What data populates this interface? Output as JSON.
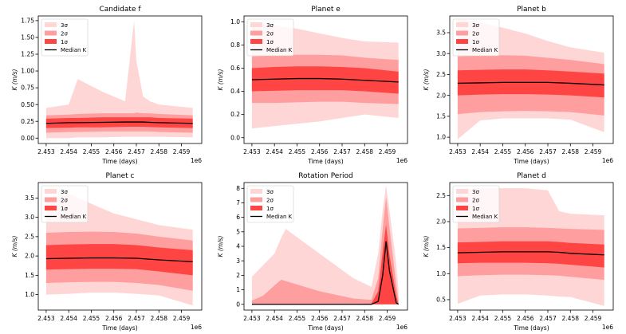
{
  "colors": {
    "band_3sigma": "#ffd6d6",
    "band_2sigma": "#ff9e9e",
    "band_1sigma": "#ff4444",
    "median_line": "#000000"
  },
  "legend_labels": [
    "3σ",
    "2σ",
    "1σ",
    "Median K"
  ],
  "xtick_labels": [
    "2.453",
    "2.454",
    "2.455",
    "2.456",
    "2.457",
    "2.458",
    "2.459"
  ],
  "x_offset_label": "1e6",
  "chart_data": [
    {
      "type": "area",
      "title": "Candidate f",
      "xlabel": "Time (days)",
      "ylabel": "K (m/s)",
      "legend": "top-left",
      "xlim": [
        2452650,
        2459900
      ],
      "ylim": [
        -0.08,
        1.82
      ],
      "yticks": [
        0.0,
        0.25,
        0.5,
        0.75,
        1.0,
        1.25,
        1.5,
        1.75
      ],
      "ytick_labels": [
        "0.00",
        "0.25",
        "0.50",
        "0.75",
        "1.00",
        "1.25",
        "1.50",
        "1.75"
      ],
      "x": [
        2453000,
        2454000,
        2454400,
        2455500,
        2456500,
        2456900,
        2457000,
        2457300,
        2457600,
        2458000,
        2459500
      ],
      "median": [
        0.22,
        0.23,
        0.23,
        0.235,
        0.24,
        0.24,
        0.24,
        0.24,
        0.235,
        0.23,
        0.22
      ],
      "sigma1": [
        [
          0.15,
          0.29
        ],
        [
          0.155,
          0.3
        ],
        [
          0.16,
          0.3
        ],
        [
          0.16,
          0.31
        ],
        [
          0.17,
          0.31
        ],
        [
          0.17,
          0.31
        ],
        [
          0.17,
          0.31
        ],
        [
          0.17,
          0.31
        ],
        [
          0.165,
          0.31
        ],
        [
          0.16,
          0.3
        ],
        [
          0.15,
          0.29
        ]
      ],
      "sigma2": [
        [
          0.08,
          0.34
        ],
        [
          0.09,
          0.35
        ],
        [
          0.09,
          0.36
        ],
        [
          0.1,
          0.37
        ],
        [
          0.1,
          0.37
        ],
        [
          0.1,
          0.37
        ],
        [
          0.1,
          0.38
        ],
        [
          0.1,
          0.37
        ],
        [
          0.1,
          0.37
        ],
        [
          0.09,
          0.36
        ],
        [
          0.08,
          0.34
        ]
      ],
      "sigma3": [
        [
          0.0,
          0.45
        ],
        [
          0.0,
          0.5
        ],
        [
          0.01,
          0.88
        ],
        [
          0.01,
          0.69
        ],
        [
          0.02,
          0.55
        ],
        [
          0.02,
          1.75
        ],
        [
          0.02,
          1.15
        ],
        [
          0.02,
          0.62
        ],
        [
          0.02,
          0.55
        ],
        [
          0.02,
          0.5
        ],
        [
          0.01,
          0.45
        ]
      ]
    },
    {
      "type": "area",
      "title": "Planet e",
      "xlabel": "Time (days)",
      "ylabel": "K (m/s)",
      "legend": "top-left",
      "xlim": [
        2452650,
        2459900
      ],
      "ylim": [
        -0.05,
        1.05
      ],
      "yticks": [
        0.0,
        0.2,
        0.4,
        0.6,
        0.8,
        1.0
      ],
      "ytick_labels": [
        "0.0",
        "0.2",
        "0.4",
        "0.6",
        "0.8",
        "1.0"
      ],
      "x": [
        2453000,
        2454000,
        2455000,
        2456000,
        2457000,
        2458000,
        2459500
      ],
      "median": [
        0.5,
        0.505,
        0.51,
        0.51,
        0.505,
        0.495,
        0.48
      ],
      "sigma1": [
        [
          0.4,
          0.6
        ],
        [
          0.405,
          0.61
        ],
        [
          0.41,
          0.615
        ],
        [
          0.41,
          0.615
        ],
        [
          0.41,
          0.61
        ],
        [
          0.4,
          0.6
        ],
        [
          0.38,
          0.57
        ]
      ],
      "sigma2": [
        [
          0.3,
          0.7
        ],
        [
          0.3,
          0.71
        ],
        [
          0.305,
          0.715
        ],
        [
          0.31,
          0.715
        ],
        [
          0.31,
          0.71
        ],
        [
          0.3,
          0.69
        ],
        [
          0.29,
          0.67
        ]
      ],
      "sigma3": [
        [
          0.08,
          0.99
        ],
        [
          0.1,
          0.97
        ],
        [
          0.12,
          0.94
        ],
        [
          0.14,
          0.9
        ],
        [
          0.17,
          0.86
        ],
        [
          0.2,
          0.83
        ],
        [
          0.17,
          0.82
        ]
      ]
    },
    {
      "type": "area",
      "title": "Planet b",
      "xlabel": "Time (days)",
      "ylabel": "K (m/s)",
      "legend": "top-left",
      "xlim": [
        2452650,
        2459900
      ],
      "ylim": [
        0.85,
        3.9
      ],
      "yticks": [
        1.0,
        1.5,
        2.0,
        2.5,
        3.0,
        3.5
      ],
      "ytick_labels": [
        "1.0",
        "1.5",
        "2.0",
        "2.5",
        "3.0",
        "3.5"
      ],
      "x": [
        2453000,
        2454000,
        2455000,
        2456000,
        2457000,
        2458000,
        2459500
      ],
      "median": [
        2.29,
        2.3,
        2.31,
        2.31,
        2.31,
        2.29,
        2.25
      ],
      "sigma1": [
        [
          2.0,
          2.6
        ],
        [
          2.02,
          2.61
        ],
        [
          2.03,
          2.62
        ],
        [
          2.03,
          2.62
        ],
        [
          2.02,
          2.6
        ],
        [
          2.0,
          2.57
        ],
        [
          1.95,
          2.52
        ]
      ],
      "sigma2": [
        [
          1.55,
          2.93
        ],
        [
          1.6,
          2.95
        ],
        [
          1.62,
          2.96
        ],
        [
          1.63,
          2.95
        ],
        [
          1.62,
          2.9
        ],
        [
          1.6,
          2.85
        ],
        [
          1.52,
          2.75
        ]
      ],
      "sigma3": [
        [
          0.95,
          3.82
        ],
        [
          1.4,
          3.75
        ],
        [
          1.45,
          3.62
        ],
        [
          1.45,
          3.48
        ],
        [
          1.45,
          3.3
        ],
        [
          1.42,
          3.15
        ],
        [
          1.12,
          3.02
        ]
      ]
    },
    {
      "type": "area",
      "title": "Planet c",
      "xlabel": "Time (days)",
      "ylabel": "K (m/s)",
      "legend": "top-left",
      "xlim": [
        2452650,
        2459900
      ],
      "ylim": [
        0.6,
        3.9
      ],
      "yticks": [
        1.0,
        1.5,
        2.0,
        2.5,
        3.0,
        3.5
      ],
      "ytick_labels": [
        "1.0",
        "1.5",
        "2.0",
        "2.5",
        "3.0",
        "3.5"
      ],
      "x": [
        2453000,
        2454000,
        2455000,
        2456000,
        2457000,
        2458000,
        2459500
      ],
      "median": [
        1.93,
        1.94,
        1.95,
        1.95,
        1.94,
        1.9,
        1.85
      ],
      "sigma1": [
        [
          1.65,
          2.28
        ],
        [
          1.66,
          2.3
        ],
        [
          1.67,
          2.31
        ],
        [
          1.67,
          2.31
        ],
        [
          1.66,
          2.28
        ],
        [
          1.6,
          2.22
        ],
        [
          1.5,
          2.15
        ]
      ],
      "sigma2": [
        [
          1.3,
          2.6
        ],
        [
          1.32,
          2.62
        ],
        [
          1.33,
          2.63
        ],
        [
          1.33,
          2.62
        ],
        [
          1.3,
          2.58
        ],
        [
          1.25,
          2.5
        ],
        [
          1.1,
          2.4
        ]
      ],
      "sigma3": [
        [
          1.0,
          3.5
        ],
        [
          1.02,
          3.6
        ],
        [
          1.05,
          3.35
        ],
        [
          1.05,
          3.1
        ],
        [
          1.02,
          2.95
        ],
        [
          0.98,
          2.8
        ],
        [
          0.72,
          2.68
        ]
      ]
    },
    {
      "type": "area",
      "title": "Rotation Period",
      "xlabel": "Time (days)",
      "ylabel": "K (m/s)",
      "legend": "top-left",
      "xlim": [
        2452650,
        2459900
      ],
      "ylim": [
        -0.4,
        8.4
      ],
      "yticks": [
        0,
        1,
        2,
        3,
        4,
        5,
        6,
        7,
        8
      ],
      "ytick_labels": [
        "0",
        "1",
        "2",
        "3",
        "4",
        "5",
        "6",
        "7",
        "8"
      ],
      "x": [
        2453000,
        2453500,
        2454000,
        2454300,
        2454500,
        2456000,
        2457500,
        2458300,
        2458600,
        2458800,
        2458950,
        2459100,
        2459400,
        2459500
      ],
      "median": [
        0.0,
        0.0,
        0.0,
        0.0,
        0.0,
        0.0,
        0.0,
        0.0,
        0.2,
        2.0,
        4.35,
        2.3,
        0.1,
        0.0
      ],
      "sigma1": [
        [
          0.0,
          0.0
        ],
        [
          0.0,
          0.0
        ],
        [
          0.0,
          0.0
        ],
        [
          0.0,
          0.0
        ],
        [
          0.0,
          0.0
        ],
        [
          0.0,
          0.0
        ],
        [
          0.0,
          0.0
        ],
        [
          0.0,
          0.05
        ],
        [
          0.0,
          0.9
        ],
        [
          0.0,
          3.6
        ],
        [
          0.0,
          5.5
        ],
        [
          0.0,
          3.4
        ],
        [
          0.0,
          0.6
        ],
        [
          0.0,
          0.0
        ]
      ],
      "sigma2": [
        [
          0.0,
          0.25
        ],
        [
          0.0,
          0.6
        ],
        [
          0.0,
          1.3
        ],
        [
          0.0,
          1.7
        ],
        [
          0.0,
          1.6
        ],
        [
          0.0,
          0.9
        ],
        [
          0.0,
          0.4
        ],
        [
          0.0,
          0.3
        ],
        [
          0.0,
          1.8
        ],
        [
          0.0,
          5.2
        ],
        [
          0.0,
          7.4
        ],
        [
          0.0,
          5.3
        ],
        [
          0.0,
          1.4
        ],
        [
          0.0,
          0.3
        ]
      ],
      "sigma3": [
        [
          0.0,
          1.9
        ],
        [
          0.0,
          2.7
        ],
        [
          0.0,
          3.5
        ],
        [
          0.0,
          4.6
        ],
        [
          0.0,
          5.2
        ],
        [
          0.0,
          3.5
        ],
        [
          0.0,
          1.8
        ],
        [
          0.0,
          1.2
        ],
        [
          0.0,
          3.5
        ],
        [
          0.0,
          6.5
        ],
        [
          0.0,
          8.2
        ],
        [
          0.0,
          6.5
        ],
        [
          0.0,
          2.8
        ],
        [
          0.0,
          1.0
        ]
      ]
    },
    {
      "type": "area",
      "title": "Planet d",
      "xlabel": "Time (days)",
      "ylabel": "K (m/s)",
      "legend": "top-left",
      "xlim": [
        2452650,
        2459900
      ],
      "ylim": [
        0.3,
        2.75
      ],
      "yticks": [
        0.5,
        1.0,
        1.5,
        2.0,
        2.5
      ],
      "ytick_labels": [
        "0.5",
        "1.0",
        "1.5",
        "2.0",
        "2.5"
      ],
      "x": [
        2453000,
        2454000,
        2455000,
        2456000,
        2457000,
        2457500,
        2458000,
        2459500
      ],
      "median": [
        1.4,
        1.41,
        1.42,
        1.42,
        1.42,
        1.41,
        1.39,
        1.36
      ],
      "sigma1": [
        [
          1.2,
          1.6
        ],
        [
          1.21,
          1.61
        ],
        [
          1.21,
          1.62
        ],
        [
          1.21,
          1.62
        ],
        [
          1.2,
          1.62
        ],
        [
          1.19,
          1.61
        ],
        [
          1.17,
          1.59
        ],
        [
          1.12,
          1.56
        ]
      ],
      "sigma2": [
        [
          0.95,
          1.87
        ],
        [
          0.97,
          1.88
        ],
        [
          0.98,
          1.89
        ],
        [
          0.98,
          1.89
        ],
        [
          0.97,
          1.88
        ],
        [
          0.96,
          1.87
        ],
        [
          0.94,
          1.86
        ],
        [
          0.88,
          1.84
        ]
      ],
      "sigma3": [
        [
          0.42,
          2.62
        ],
        [
          0.58,
          2.64
        ],
        [
          0.6,
          2.64
        ],
        [
          0.6,
          2.64
        ],
        [
          0.58,
          2.6
        ],
        [
          0.56,
          2.2
        ],
        [
          0.55,
          2.15
        ],
        [
          0.38,
          2.12
        ]
      ]
    }
  ]
}
